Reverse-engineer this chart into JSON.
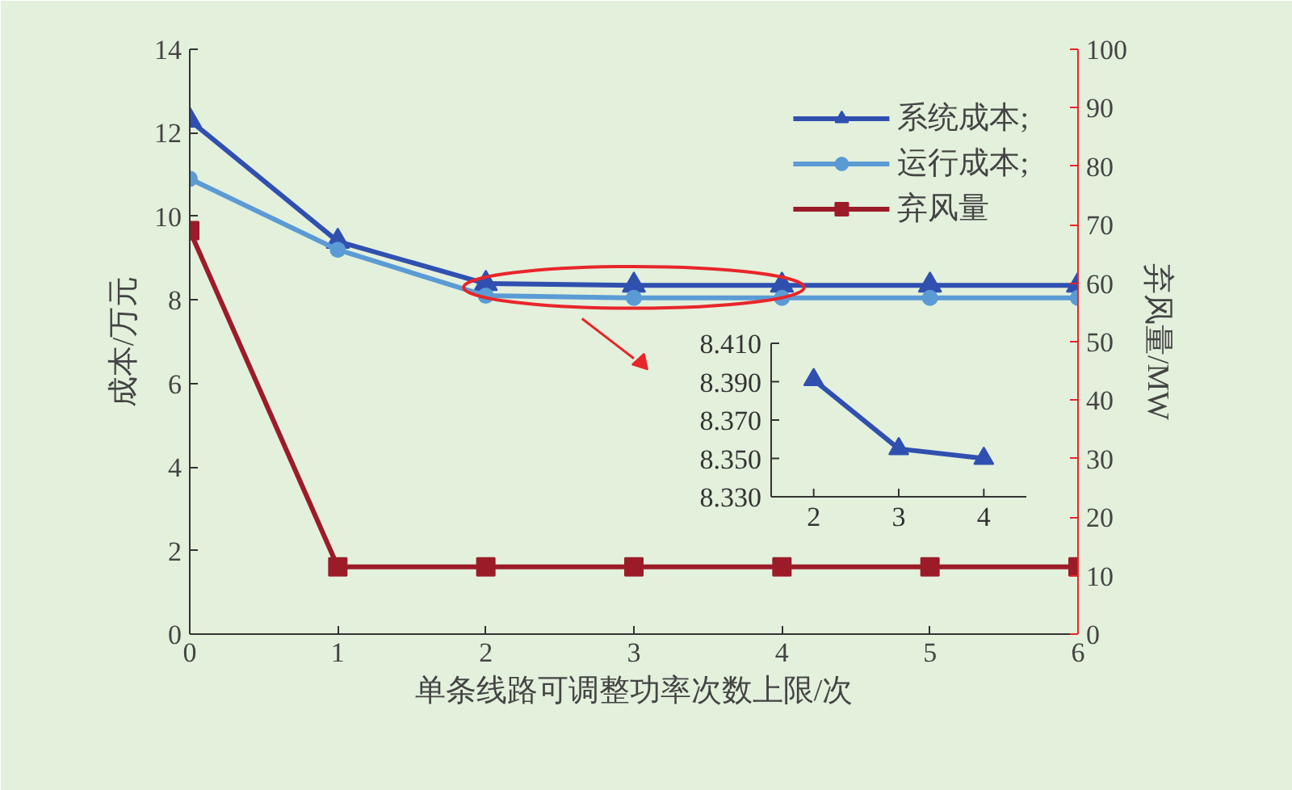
{
  "chart_data": [
    {
      "type": "line",
      "xlabel": "单条线路可调整功率次数上限/次",
      "ylabel": "成本/万元",
      "y2label": "弃风量/MW",
      "x": [
        0,
        1,
        2,
        3,
        4,
        5,
        6
      ],
      "xlim": [
        0,
        6
      ],
      "xticks": [
        0,
        1,
        2,
        3,
        4,
        5,
        6
      ],
      "ylim": [
        0,
        14
      ],
      "yticks": [
        0,
        2,
        4,
        6,
        8,
        10,
        12,
        14
      ],
      "y2lim": [
        0,
        100
      ],
      "y2ticks": [
        0,
        10,
        20,
        30,
        40,
        50,
        60,
        70,
        80,
        90,
        100
      ],
      "grid": false,
      "legend": "top right",
      "series": [
        {
          "name": "系统成本;",
          "color": "#3050b0",
          "marker": "triangle",
          "values": [
            12.3,
            9.4,
            8.39,
            8.35,
            8.35,
            8.35,
            8.35
          ]
        },
        {
          "name": "运行成本;",
          "color": "#5b9bd5",
          "marker": "circle",
          "values": [
            10.9,
            9.2,
            8.1,
            8.05,
            8.05,
            8.05,
            8.05
          ]
        },
        {
          "name": "弃风量",
          "color": "#9b1c28",
          "marker": "square",
          "axis": "y2",
          "values": [
            69,
            11.5,
            11.5,
            11.5,
            11.5,
            11.5,
            11.5
          ]
        }
      ]
    },
    {
      "type": "line",
      "x": [
        2,
        3,
        4
      ],
      "xlim": [
        1.5,
        4.5
      ],
      "xticks": [
        2,
        3,
        4
      ],
      "ylim": [
        8.33,
        8.41
      ],
      "yticks": [
        {
          "value": 8.33,
          "label": "8.330"
        },
        {
          "value": 8.35,
          "label": "8.350"
        },
        {
          "value": 8.37,
          "label": "8.370"
        },
        {
          "value": 8.39,
          "label": "8.390"
        },
        {
          "value": 8.41,
          "label": "8.410"
        }
      ],
      "series": [
        {
          "color": "#3050b0",
          "marker": "triangle",
          "values": [
            8.391,
            8.355,
            8.35
          ]
        }
      ]
    }
  ]
}
